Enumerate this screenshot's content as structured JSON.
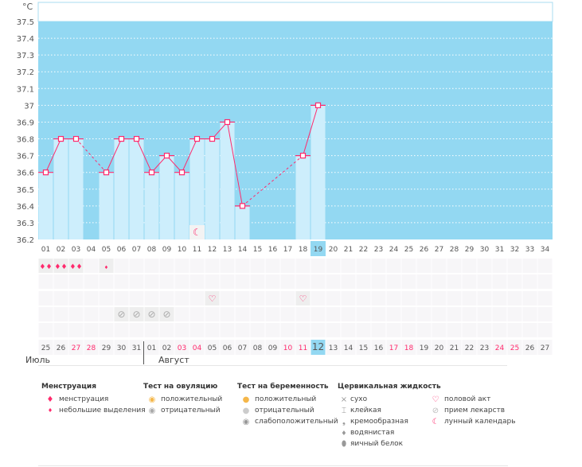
{
  "chart_data": {
    "type": "bar+line",
    "ylabel": "°C",
    "ylim": [
      36.2,
      37.5
    ],
    "yticks": [
      "36.2",
      "36.3",
      "36.4",
      "36.5",
      "36.6",
      "36.7",
      "36.8",
      "36.9",
      "37",
      "37.1",
      "37.2",
      "37.3",
      "37.4",
      "37.5"
    ],
    "cycle_days": [
      "01",
      "02",
      "03",
      "04",
      "05",
      "06",
      "07",
      "08",
      "09",
      "10",
      "11",
      "12",
      "13",
      "14",
      "15",
      "16",
      "17",
      "18",
      "19",
      "20",
      "21",
      "22",
      "23",
      "24",
      "25",
      "26",
      "27",
      "28",
      "29",
      "30",
      "31",
      "32",
      "33",
      "34"
    ],
    "dates": [
      "25",
      "26",
      "27",
      "28",
      "29",
      "30",
      "31",
      "01",
      "02",
      "03",
      "04",
      "05",
      "06",
      "07",
      "08",
      "09",
      "10",
      "11",
      "12",
      "13",
      "14",
      "15",
      "16",
      "17",
      "18",
      "19",
      "20",
      "21",
      "22",
      "23",
      "24",
      "25",
      "26",
      "27"
    ],
    "weekend_dates_idx": [
      2,
      3,
      9,
      10,
      16,
      17,
      23,
      24,
      30,
      31
    ],
    "temperatures": [
      36.6,
      36.8,
      36.8,
      null,
      36.6,
      36.8,
      36.8,
      36.6,
      36.7,
      36.6,
      36.8,
      36.8,
      36.9,
      36.4,
      null,
      null,
      null,
      36.7,
      37.0
    ],
    "today_index": 18,
    "moon_day_index": 10,
    "menstruation_days": [
      0,
      1,
      2
    ],
    "spotting_days": [
      4
    ],
    "intercourse_days": [
      11,
      17
    ],
    "medication_days": [
      5,
      6,
      7,
      8
    ],
    "grid": true,
    "colors": {
      "background": "#93d8f2",
      "bar": "#cdeefc",
      "line": "#ff2a6d",
      "today": "#93d8f2",
      "weekend": "#ff2a6d",
      "cell": "#f7f6f8"
    }
  },
  "months": [
    {
      "label": "Июль"
    },
    {
      "label": "Август"
    }
  ],
  "legend": {
    "menstruation": {
      "title": "Менструация",
      "items": [
        "менструация",
        "небольшие выделения"
      ]
    },
    "ovulation": {
      "title": "Тест на овуляцию",
      "items": [
        "положительный",
        "отрицательный"
      ]
    },
    "pregnancy": {
      "title": "Тест на беременность",
      "items": [
        "положительный",
        "отрицательный",
        "слабоположительный"
      ]
    },
    "cervical": {
      "title": "Цервикальная жидкость",
      "items": [
        "сухо",
        "клейкая",
        "кремообразная",
        "водянистая",
        "яичный белок"
      ]
    },
    "other": {
      "items": [
        "половой акт",
        "прием лекарств",
        "лунный календарь"
      ]
    }
  }
}
